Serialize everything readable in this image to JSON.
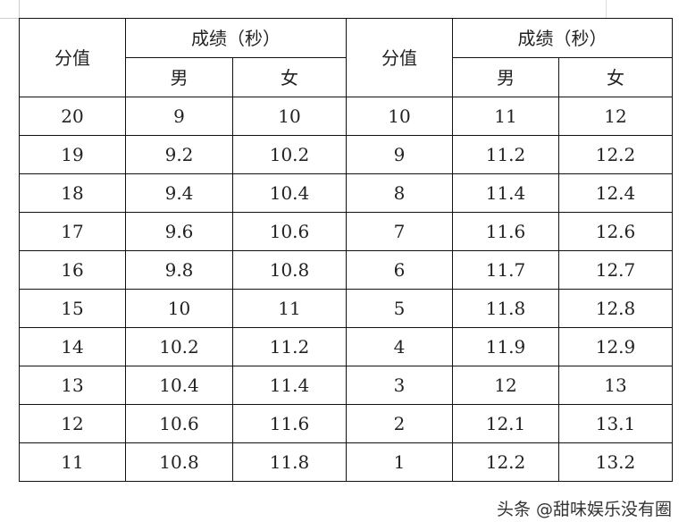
{
  "headers": {
    "score": "分值",
    "result": "成绩（秒）",
    "male": "男",
    "female": "女"
  },
  "rows_left": [
    [
      "20",
      "9",
      "10"
    ],
    [
      "19",
      "9.2",
      "10.2"
    ],
    [
      "18",
      "9.4",
      "10.4"
    ],
    [
      "17",
      "9.6",
      "10.6"
    ],
    [
      "16",
      "9.8",
      "10.8"
    ],
    [
      "15",
      "10",
      "11"
    ],
    [
      "14",
      "10.2",
      "11.2"
    ],
    [
      "13",
      "10.4",
      "11.4"
    ],
    [
      "12",
      "10.6",
      "11.6"
    ],
    [
      "11",
      "10.8",
      "11.8"
    ]
  ],
  "rows_right": [
    [
      "10",
      "11",
      "12"
    ],
    [
      "9",
      "11.2",
      "12.2"
    ],
    [
      "8",
      "11.4",
      "12.4"
    ],
    [
      "7",
      "11.6",
      "12.6"
    ],
    [
      "6",
      "11.7",
      "12.7"
    ],
    [
      "5",
      "11.8",
      "12.8"
    ],
    [
      "4",
      "11.9",
      "12.9"
    ],
    [
      "3",
      "12",
      "13"
    ],
    [
      "2",
      "12.1",
      "13.1"
    ],
    [
      "1",
      "12.2",
      "13.2"
    ]
  ],
  "watermark": "头条 @甜味娱乐没有圈"
}
